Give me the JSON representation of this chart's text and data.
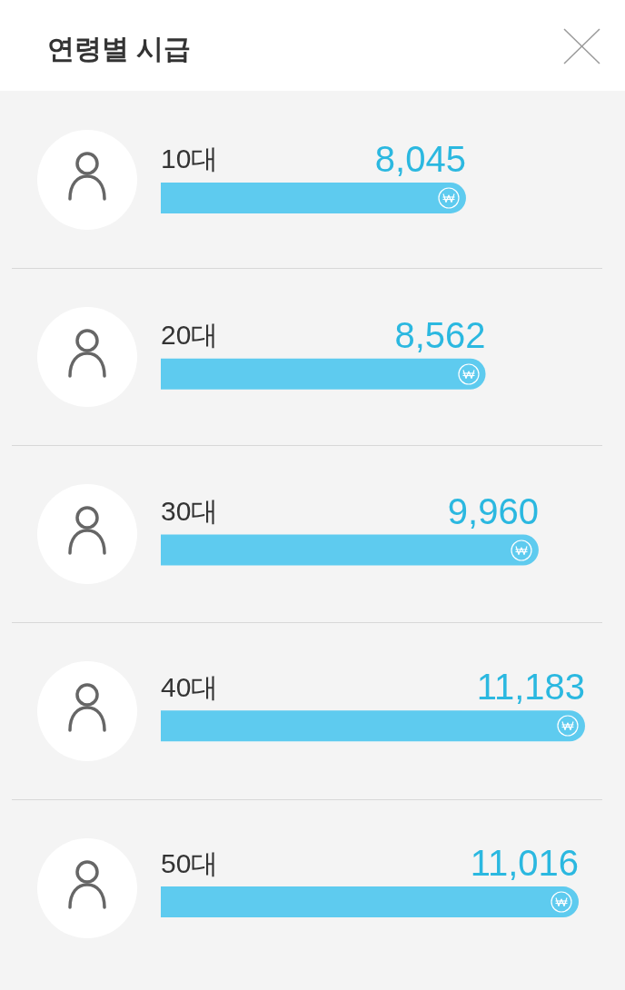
{
  "chart_data": {
    "type": "bar",
    "title": "연령별 시급",
    "orientation": "horizontal",
    "categories": [
      "10대",
      "20대",
      "30대",
      "40대",
      "50대"
    ],
    "values": [
      8045,
      8562,
      9960,
      11183,
      11016
    ],
    "value_labels": [
      "8,045",
      "8,562",
      "9,960",
      "11,183",
      "11,016"
    ],
    "color": "#5ecbef",
    "tick_labels": "y"
  }
}
